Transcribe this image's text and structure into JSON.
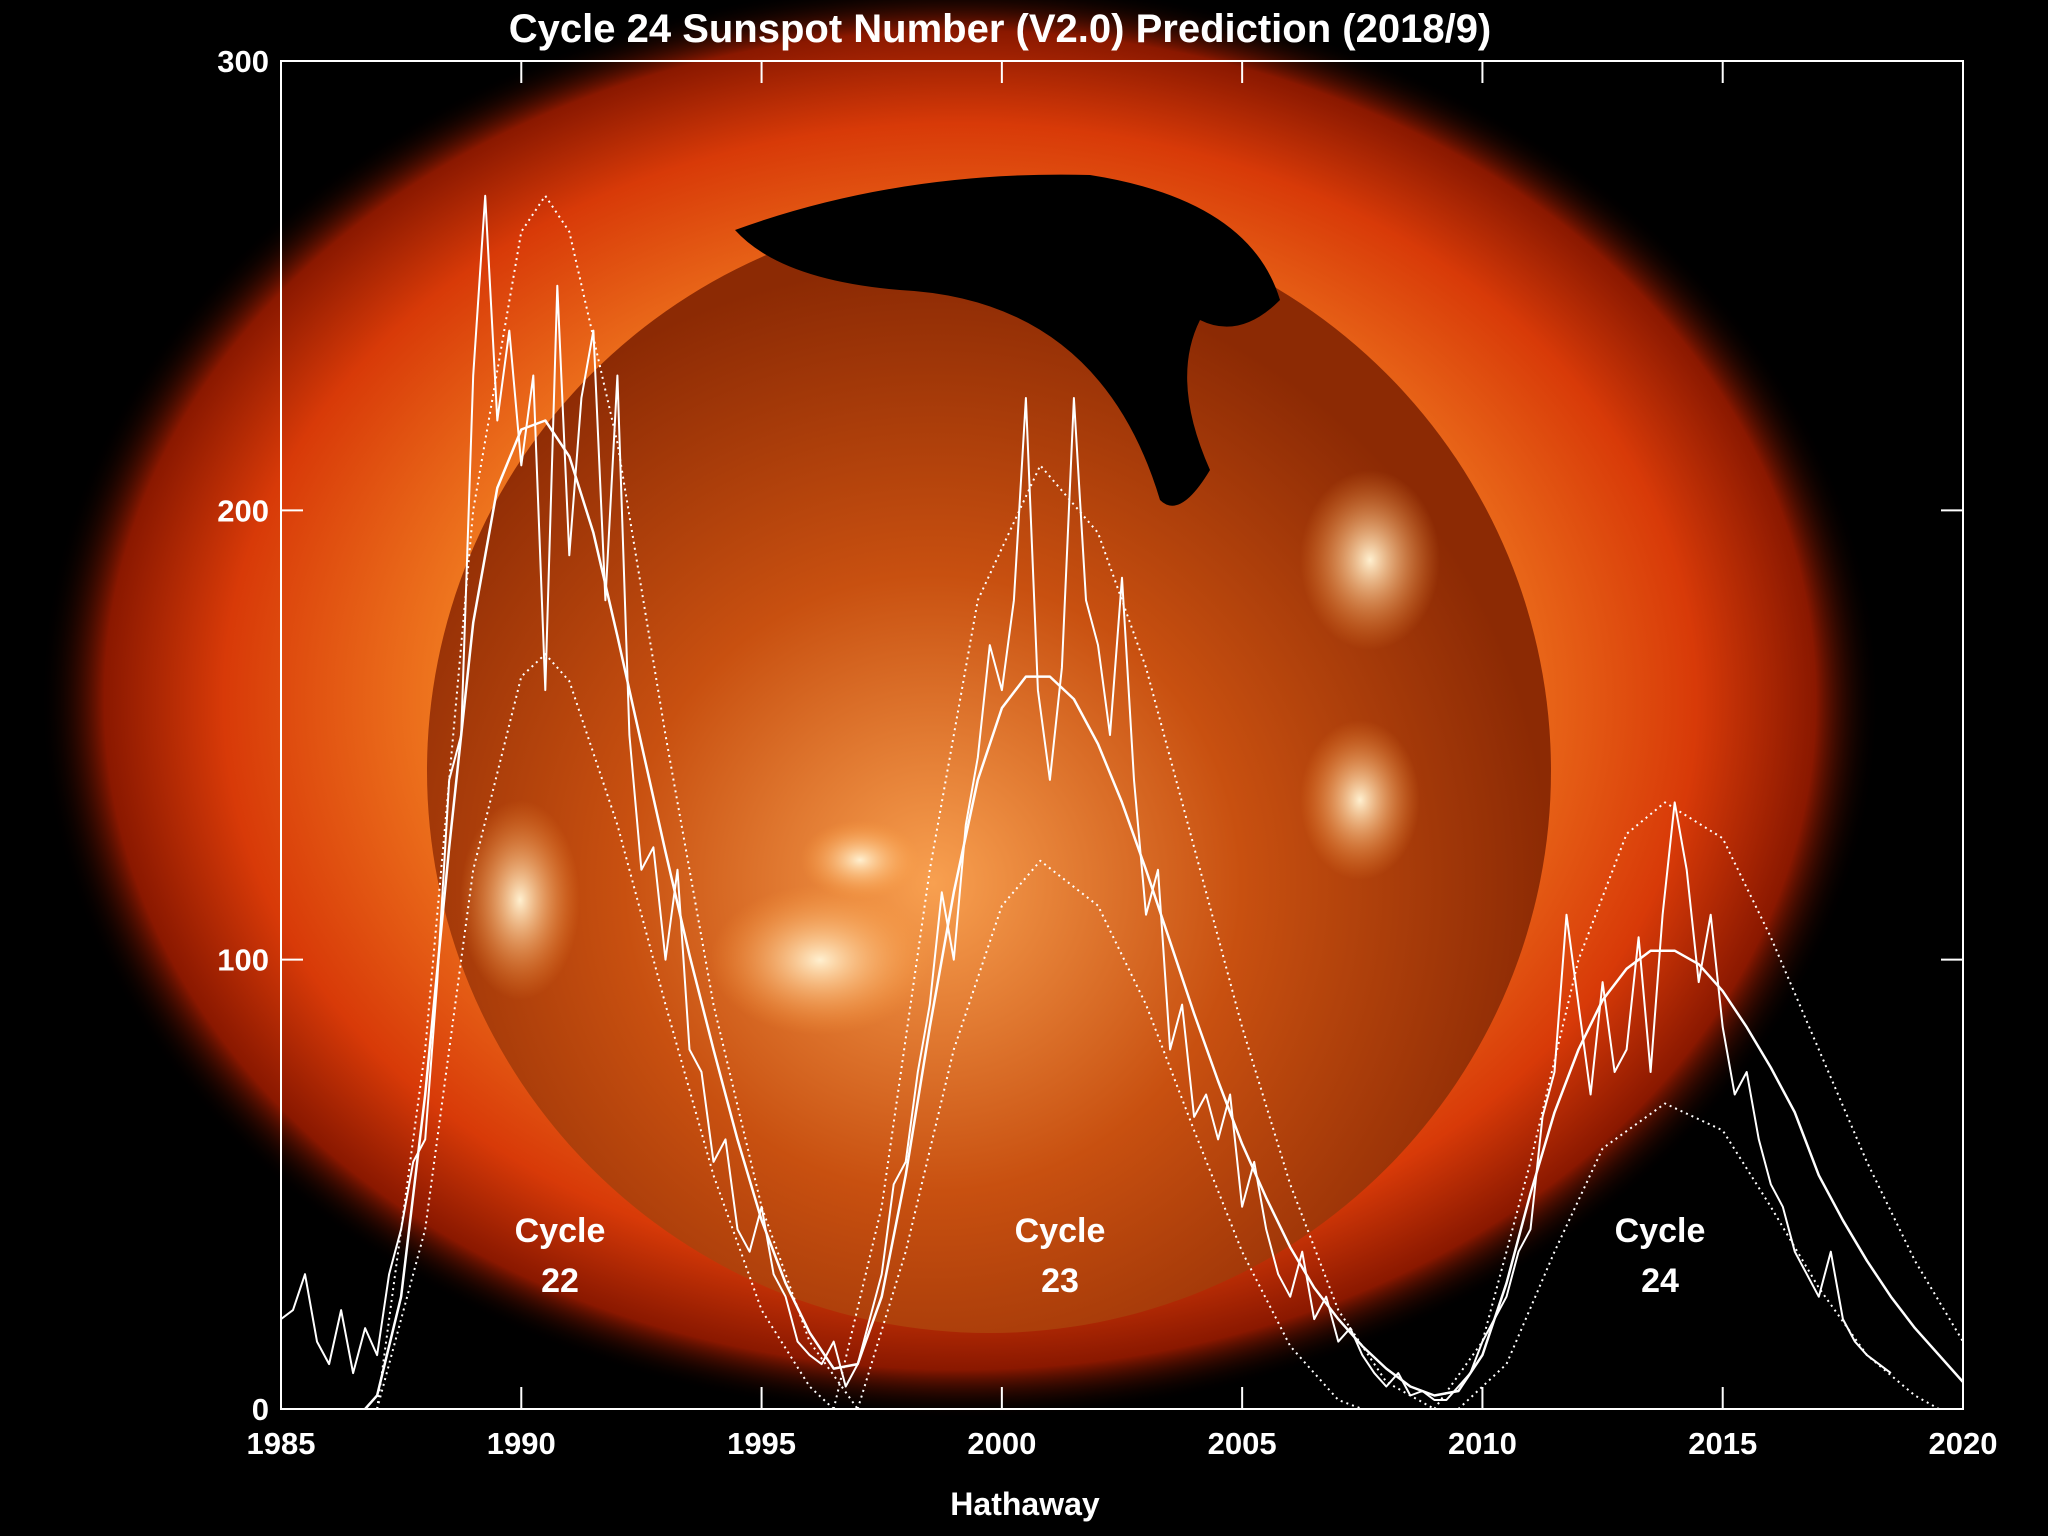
{
  "chart_data": {
    "type": "line",
    "title": "Cycle 24 Sunspot Number (V2.0) Prediction (2018/9)",
    "x_label": "Hathaway",
    "xlim": [
      1985,
      2020
    ],
    "xticks": [
      1985,
      1990,
      1995,
      2000,
      2005,
      2010,
      2015,
      2020
    ],
    "ylim": [
      0,
      300
    ],
    "yticks": [
      0,
      100,
      200,
      300
    ],
    "annotations": [
      [
        "Cycle",
        "22"
      ],
      [
        "Cycle",
        "23"
      ],
      [
        "Cycle",
        "24"
      ]
    ],
    "series": [
      {
        "color": "#ffffff",
        "dash": "solid",
        "width": 2,
        "x": [
          1985,
          1985.25,
          1985.5,
          1985.75,
          1986,
          1986.25,
          1986.5,
          1986.75,
          1987,
          1987.25,
          1987.5,
          1987.75,
          1988,
          1988.25,
          1988.5,
          1988.75,
          1989,
          1989.25,
          1989.5,
          1989.75,
          1990,
          1990.25,
          1990.5,
          1990.75,
          1991,
          1991.25,
          1991.5,
          1991.75,
          1992,
          1992.25,
          1992.5,
          1992.75,
          1993,
          1993.25,
          1993.5,
          1993.75,
          1994,
          1994.25,
          1994.5,
          1994.75,
          1995,
          1995.25,
          1995.5,
          1995.75,
          1996,
          1996.25,
          1996.5,
          1996.75,
          1997,
          1997.25,
          1997.5,
          1997.75,
          1998,
          1998.25,
          1998.5,
          1998.75,
          1999,
          1999.25,
          1999.5,
          1999.75,
          2000,
          2000.25,
          2000.5,
          2000.75,
          2001,
          2001.25,
          2001.5,
          2001.75,
          2002,
          2002.25,
          2002.5,
          2002.75,
          2003,
          2003.25,
          2003.5,
          2003.75,
          2004,
          2004.25,
          2004.5,
          2004.75,
          2005,
          2005.25,
          2005.5,
          2005.75,
          2006,
          2006.25,
          2006.5,
          2006.75,
          2007,
          2007.25,
          2007.5,
          2007.75,
          2008,
          2008.25,
          2008.5,
          2008.75,
          2009,
          2009.25,
          2009.5,
          2009.75,
          2010,
          2010.25,
          2010.5,
          2010.75,
          2011,
          2011.25,
          2011.5,
          2011.75,
          2012,
          2012.25,
          2012.5,
          2012.75,
          2013,
          2013.25,
          2013.5,
          2013.75,
          2014,
          2014.25,
          2014.5,
          2014.75,
          2015,
          2015.25,
          2015.5,
          2015.75,
          2016,
          2016.25,
          2016.5,
          2016.75,
          2017,
          2017.25,
          2017.5,
          2017.75,
          2018,
          2018.25,
          2018.5
        ],
        "values": [
          20,
          22,
          30,
          15,
          10,
          22,
          8,
          18,
          12,
          30,
          40,
          55,
          60,
          95,
          140,
          150,
          230,
          270,
          220,
          240,
          210,
          230,
          160,
          250,
          190,
          225,
          240,
          180,
          230,
          150,
          120,
          125,
          100,
          120,
          80,
          75,
          55,
          60,
          40,
          35,
          45,
          30,
          25,
          15,
          12,
          10,
          15,
          5,
          10,
          20,
          30,
          50,
          55,
          75,
          90,
          115,
          100,
          130,
          145,
          170,
          160,
          180,
          225,
          160,
          140,
          165,
          225,
          180,
          170,
          150,
          185,
          140,
          110,
          120,
          80,
          90,
          65,
          70,
          60,
          70,
          45,
          55,
          40,
          30,
          25,
          35,
          20,
          25,
          15,
          18,
          12,
          8,
          5,
          8,
          3,
          4,
          2,
          2,
          5,
          8,
          15,
          20,
          25,
          35,
          40,
          65,
          75,
          110,
          90,
          70,
          95,
          75,
          80,
          105,
          75,
          110,
          135,
          120,
          95,
          110,
          85,
          70,
          75,
          60,
          50,
          45,
          35,
          30,
          25,
          35,
          20,
          15,
          12,
          10,
          8
        ]
      },
      {
        "color": "#ffffff",
        "dash": "solid",
        "width": 2.5,
        "x": [
          1986.75,
          1987,
          1987.5,
          1988,
          1988.5,
          1989,
          1989.5,
          1990,
          1990.5,
          1991,
          1991.5,
          1992,
          1992.5,
          1993,
          1993.5,
          1994,
          1994.5,
          1995,
          1995.5,
          1996,
          1996.5,
          1997,
          1997.5,
          1998,
          1998.5,
          1999,
          1999.5,
          2000,
          2000.5,
          2001,
          2001.5,
          2002,
          2002.5,
          2003,
          2003.5,
          2004,
          2004.5,
          2005,
          2005.5,
          2006,
          2006.5,
          2007,
          2007.5,
          2008,
          2008.5,
          2009,
          2009.5,
          2010,
          2010.5,
          2011,
          2011.5,
          2012,
          2012.5,
          2013,
          2013.5,
          2014,
          2014.5,
          2015,
          2015.5,
          2016,
          2016.5,
          2017,
          2017.5,
          2018,
          2018.5,
          2019,
          2019.5,
          2020
        ],
        "values": [
          0,
          3,
          25,
          70,
          125,
          175,
          205,
          218,
          220,
          212,
          195,
          172,
          148,
          124,
          101,
          80,
          60,
          42,
          28,
          17,
          9,
          10,
          25,
          52,
          85,
          115,
          140,
          156,
          163,
          163,
          158,
          148,
          135,
          120,
          104,
          88,
          73,
          59,
          47,
          36,
          27,
          20,
          14,
          9,
          5,
          3,
          4,
          12,
          28,
          48,
          66,
          80,
          91,
          98,
          102,
          102,
          99,
          93,
          85,
          76,
          66,
          52,
          42,
          33,
          25,
          18,
          12,
          6
        ]
      },
      {
        "color": "#ffffff",
        "dash": "dotted",
        "width": 2,
        "x": [
          1987,
          1988,
          1989,
          1990,
          1990.5,
          1991,
          1992,
          1993,
          1994,
          1995,
          1996,
          1997
        ],
        "values": [
          0,
          80,
          200,
          262,
          270,
          262,
          215,
          150,
          90,
          45,
          15,
          0
        ]
      },
      {
        "color": "#ffffff",
        "dash": "dotted",
        "width": 2,
        "x": [
          1987,
          1988,
          1989,
          1990,
          1990.5,
          1991,
          1992,
          1993,
          1994,
          1995,
          1996,
          1996.5
        ],
        "values": [
          0,
          40,
          120,
          163,
          168,
          162,
          130,
          90,
          52,
          22,
          5,
          0
        ]
      },
      {
        "color": "#ffffff",
        "dash": "dotted",
        "width": 2,
        "x": [
          1996.5,
          1997.5,
          1998.5,
          1999.5,
          2000.8,
          2002,
          2003,
          2004,
          2005,
          2006,
          2007,
          2008,
          2009
        ],
        "values": [
          0,
          45,
          120,
          180,
          210,
          195,
          165,
          125,
          85,
          50,
          22,
          6,
          0
        ]
      },
      {
        "color": "#ffffff",
        "dash": "dotted",
        "width": 2,
        "x": [
          1997,
          1998,
          1999,
          2000,
          2000.8,
          2002,
          2003,
          2004,
          2005,
          2006,
          2007,
          2007.5
        ],
        "values": [
          0,
          35,
          80,
          112,
          122,
          112,
          90,
          62,
          35,
          14,
          2,
          0
        ]
      },
      {
        "color": "#ffffff",
        "dash": "dotted",
        "width": 2,
        "x": [
          2009,
          2010,
          2011,
          2012,
          2013,
          2013.8,
          2015,
          2016,
          2017,
          2018,
          2019,
          2020
        ],
        "values": [
          0,
          15,
          55,
          100,
          128,
          135,
          127,
          105,
          80,
          55,
          33,
          15
        ]
      },
      {
        "color": "#ffffff",
        "dash": "dotted",
        "width": 2,
        "x": [
          2009.5,
          2010.5,
          2011.5,
          2012.5,
          2013.8,
          2015,
          2016,
          2017,
          2018,
          2019,
          2019.5
        ],
        "values": [
          0,
          10,
          35,
          58,
          68,
          62,
          45,
          27,
          12,
          3,
          0
        ]
      }
    ]
  }
}
